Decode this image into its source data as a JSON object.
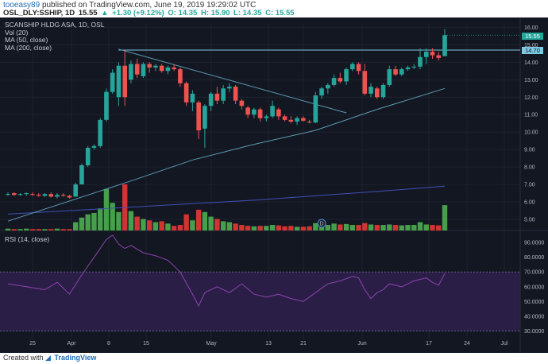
{
  "header": {
    "user": "tooeasy89",
    "published_text": "published on TradingView.com, June 19, 2019 19:29:02 UTC",
    "symbol": "OSL_DLY:SSHIP, 1D",
    "last": "15.55",
    "change": "+1.30 (+9.12%)",
    "ohlc_o": "O: 14.35",
    "ohlc_h": "H: 15.90",
    "ohlc_l": "L: 14.35",
    "ohlc_c": "C: 15.55"
  },
  "legend": {
    "title": "SCANSHIP HLDG ASA, 1D, OSL",
    "vol": "Vol (20)",
    "ma50": "MA (50, close)",
    "ma200": "MA (200, close)"
  },
  "rsi_legend": "RSI (14, close)",
  "price_badges": {
    "last": "15.55",
    "ma_line": "14.70"
  },
  "dividend_marker": "D",
  "footer": {
    "created_with": "Created with",
    "brand": "TradingView"
  },
  "colors": {
    "background": "#131722",
    "up": "#26a69a",
    "down": "#ef5350",
    "vol_up": "#4caf50",
    "vol_down": "#e53935",
    "ma50": "#5b9ab0",
    "ma200": "#3f51b5",
    "rsi_line": "#8e44ad",
    "rsi_band": "#2a1e47",
    "last_badge": "#26a69a",
    "ma_badge": "#7ec8e3"
  },
  "chart_data": {
    "type": "candlestick",
    "x_tick_labels": [
      "25",
      "Apr",
      "8",
      "15",
      "May",
      "13",
      "21",
      "Jun",
      "17",
      "24",
      "Jul"
    ],
    "price_axis_ticks": [
      "16.00",
      "15.00",
      "14.00",
      "13.00",
      "12.00",
      "11.00",
      "10.00",
      "9.00",
      "8.00",
      "7.00",
      "6.00",
      "5.00"
    ],
    "price_ylim": [
      4.5,
      16.2
    ],
    "rsi_axis_ticks": [
      "90.0000",
      "80.0000",
      "70.0000",
      "60.0000",
      "50.0000",
      "40.0000",
      "30.0000"
    ],
    "rsi_ylim": [
      27,
      96
    ],
    "candles": [
      {
        "o": 6.45,
        "h": 6.55,
        "l": 6.35,
        "c": 6.45
      },
      {
        "o": 6.5,
        "h": 6.55,
        "l": 6.35,
        "c": 6.4
      },
      {
        "o": 6.4,
        "h": 6.5,
        "l": 6.35,
        "c": 6.45
      },
      {
        "o": 6.45,
        "h": 6.55,
        "l": 6.35,
        "c": 6.5
      },
      {
        "o": 6.45,
        "h": 6.55,
        "l": 6.35,
        "c": 6.4
      },
      {
        "o": 6.4,
        "h": 6.5,
        "l": 6.3,
        "c": 6.35
      },
      {
        "o": 6.35,
        "h": 6.5,
        "l": 6.3,
        "c": 6.45
      },
      {
        "o": 6.45,
        "h": 6.55,
        "l": 6.25,
        "c": 6.3
      },
      {
        "o": 6.3,
        "h": 6.5,
        "l": 6.2,
        "c": 6.4
      },
      {
        "o": 6.4,
        "h": 6.5,
        "l": 6.3,
        "c": 6.35
      },
      {
        "o": 6.35,
        "h": 6.4,
        "l": 6.2,
        "c": 6.25
      },
      {
        "o": 6.3,
        "h": 7.1,
        "l": 6.3,
        "c": 7.0
      },
      {
        "o": 7.0,
        "h": 8.2,
        "l": 7.0,
        "c": 8.1
      },
      {
        "o": 8.1,
        "h": 9.2,
        "l": 8.0,
        "c": 9.1
      },
      {
        "o": 9.1,
        "h": 9.3,
        "l": 9.0,
        "c": 9.2
      },
      {
        "o": 9.2,
        "h": 10.8,
        "l": 9.1,
        "c": 10.7
      },
      {
        "o": 10.7,
        "h": 12.5,
        "l": 10.6,
        "c": 12.3
      },
      {
        "o": 12.3,
        "h": 13.6,
        "l": 12.2,
        "c": 13.4
      },
      {
        "o": 12.0,
        "h": 14.0,
        "l": 11.5,
        "c": 13.8
      },
      {
        "o": 13.8,
        "h": 14.7,
        "l": 11.5,
        "c": 12.0
      },
      {
        "o": 13.0,
        "h": 14.1,
        "l": 12.8,
        "c": 13.9
      },
      {
        "o": 13.9,
        "h": 14.2,
        "l": 13.1,
        "c": 13.3
      },
      {
        "o": 13.2,
        "h": 14.0,
        "l": 13.1,
        "c": 13.9
      },
      {
        "o": 13.9,
        "h": 14.0,
        "l": 13.4,
        "c": 13.7
      },
      {
        "o": 13.7,
        "h": 13.9,
        "l": 13.5,
        "c": 13.8
      },
      {
        "o": 13.8,
        "h": 13.9,
        "l": 13.4,
        "c": 13.5
      },
      {
        "o": 13.5,
        "h": 13.8,
        "l": 13.3,
        "c": 13.7
      },
      {
        "o": 13.7,
        "h": 13.9,
        "l": 13.5,
        "c": 13.6
      },
      {
        "o": 13.6,
        "h": 13.7,
        "l": 12.6,
        "c": 12.8
      },
      {
        "o": 12.8,
        "h": 12.9,
        "l": 11.5,
        "c": 11.7
      },
      {
        "o": 11.7,
        "h": 12.4,
        "l": 11.2,
        "c": 12.2
      },
      {
        "o": 11.7,
        "h": 11.8,
        "l": 9.6,
        "c": 10.1
      },
      {
        "o": 10.2,
        "h": 11.6,
        "l": 9.1,
        "c": 11.5
      },
      {
        "o": 11.5,
        "h": 12.3,
        "l": 11.2,
        "c": 12.2
      },
      {
        "o": 12.2,
        "h": 12.6,
        "l": 11.6,
        "c": 11.8
      },
      {
        "o": 11.8,
        "h": 12.7,
        "l": 11.6,
        "c": 12.5
      },
      {
        "o": 12.5,
        "h": 12.8,
        "l": 12.3,
        "c": 12.6
      },
      {
        "o": 12.6,
        "h": 12.7,
        "l": 11.6,
        "c": 11.8
      },
      {
        "o": 11.8,
        "h": 11.9,
        "l": 11.3,
        "c": 11.5
      },
      {
        "o": 11.4,
        "h": 11.5,
        "l": 10.8,
        "c": 11.0
      },
      {
        "o": 11.0,
        "h": 11.4,
        "l": 10.8,
        "c": 11.3
      },
      {
        "o": 11.3,
        "h": 11.4,
        "l": 10.6,
        "c": 10.8
      },
      {
        "o": 10.8,
        "h": 11.0,
        "l": 10.6,
        "c": 10.9
      },
      {
        "o": 10.9,
        "h": 11.8,
        "l": 10.8,
        "c": 11.5
      },
      {
        "o": 11.3,
        "h": 11.4,
        "l": 10.7,
        "c": 10.9
      },
      {
        "o": 10.9,
        "h": 11.0,
        "l": 10.6,
        "c": 10.7
      },
      {
        "o": 10.7,
        "h": 10.9,
        "l": 10.5,
        "c": 10.6
      },
      {
        "o": 10.6,
        "h": 10.9,
        "l": 10.4,
        "c": 10.8
      },
      {
        "o": 10.8,
        "h": 10.9,
        "l": 10.6,
        "c": 10.65
      },
      {
        "o": 10.6,
        "h": 10.7,
        "l": 10.5,
        "c": 10.55
      },
      {
        "o": 10.55,
        "h": 12.3,
        "l": 10.5,
        "c": 12.1
      },
      {
        "o": 12.1,
        "h": 12.6,
        "l": 11.9,
        "c": 12.5
      },
      {
        "o": 12.5,
        "h": 12.8,
        "l": 12.2,
        "c": 12.7
      },
      {
        "o": 12.7,
        "h": 13.3,
        "l": 12.6,
        "c": 13.1
      },
      {
        "o": 13.1,
        "h": 13.4,
        "l": 12.8,
        "c": 12.9
      },
      {
        "o": 12.9,
        "h": 13.7,
        "l": 12.7,
        "c": 13.6
      },
      {
        "o": 13.6,
        "h": 14.0,
        "l": 13.5,
        "c": 13.9
      },
      {
        "o": 13.9,
        "h": 14.0,
        "l": 13.3,
        "c": 13.5
      },
      {
        "o": 13.5,
        "h": 13.9,
        "l": 12.1,
        "c": 12.2
      },
      {
        "o": 12.2,
        "h": 12.8,
        "l": 12.0,
        "c": 12.6
      },
      {
        "o": 12.5,
        "h": 12.6,
        "l": 11.9,
        "c": 12.0
      },
      {
        "o": 12.0,
        "h": 12.8,
        "l": 11.9,
        "c": 12.7
      },
      {
        "o": 12.7,
        "h": 13.8,
        "l": 12.6,
        "c": 13.6
      },
      {
        "o": 13.6,
        "h": 13.8,
        "l": 13.2,
        "c": 13.3
      },
      {
        "o": 13.3,
        "h": 13.7,
        "l": 13.2,
        "c": 13.6
      },
      {
        "o": 13.6,
        "h": 13.8,
        "l": 13.5,
        "c": 13.7
      },
      {
        "o": 13.7,
        "h": 13.9,
        "l": 13.6,
        "c": 13.75
      },
      {
        "o": 13.75,
        "h": 14.8,
        "l": 13.6,
        "c": 14.3
      },
      {
        "o": 14.3,
        "h": 14.8,
        "l": 13.9,
        "c": 14.6
      },
      {
        "o": 14.6,
        "h": 14.8,
        "l": 14.2,
        "c": 14.4
      },
      {
        "o": 14.4,
        "h": 14.6,
        "l": 14.1,
        "c": 14.25
      },
      {
        "o": 14.35,
        "h": 15.9,
        "l": 14.35,
        "c": 15.55
      }
    ],
    "volume": [
      0.04,
      0.03,
      0.03,
      0.04,
      0.03,
      0.03,
      0.03,
      0.03,
      0.04,
      0.03,
      0.03,
      0.18,
      0.28,
      0.35,
      0.38,
      0.48,
      0.9,
      0.6,
      0.4,
      1.0,
      0.42,
      0.3,
      0.25,
      0.22,
      0.18,
      0.2,
      0.15,
      0.1,
      0.12,
      0.35,
      0.22,
      0.45,
      0.4,
      0.3,
      0.25,
      0.2,
      0.18,
      0.15,
      0.12,
      0.1,
      0.09,
      0.1,
      0.1,
      0.12,
      0.11,
      0.09,
      0.1,
      0.08,
      0.08,
      0.09,
      0.16,
      0.14,
      0.12,
      0.15,
      0.13,
      0.14,
      0.12,
      0.12,
      0.16,
      0.13,
      0.12,
      0.12,
      0.13,
      0.12,
      0.11,
      0.12,
      0.12,
      0.18,
      0.13,
      0.12,
      0.11,
      0.55
    ],
    "ma50": [
      [
        0,
        4.9
      ],
      [
        20,
        7.2
      ],
      [
        30,
        8.4
      ],
      [
        40,
        9.3
      ],
      [
        50,
        10.1
      ],
      [
        60,
        11.3
      ],
      [
        71,
        12.5
      ]
    ],
    "ma200": [
      [
        0,
        5.3
      ],
      [
        20,
        5.7
      ],
      [
        40,
        6.1
      ],
      [
        60,
        6.6
      ],
      [
        71,
        6.9
      ]
    ],
    "trendline": [
      [
        18,
        14.75
      ],
      [
        55,
        11.1
      ]
    ],
    "resistance": 14.7,
    "rsi": [
      [
        0,
        62
      ],
      [
        3,
        60
      ],
      [
        6,
        58
      ],
      [
        8,
        63
      ],
      [
        10,
        55
      ],
      [
        12,
        68
      ],
      [
        14,
        80
      ],
      [
        16,
        92
      ],
      [
        17,
        95
      ],
      [
        18,
        89
      ],
      [
        19,
        86
      ],
      [
        20,
        88
      ],
      [
        22,
        83
      ],
      [
        24,
        81
      ],
      [
        26,
        78
      ],
      [
        28,
        70
      ],
      [
        30,
        55
      ],
      [
        31,
        47
      ],
      [
        32,
        56
      ],
      [
        34,
        60
      ],
      [
        36,
        56
      ],
      [
        38,
        62
      ],
      [
        40,
        55
      ],
      [
        42,
        53
      ],
      [
        44,
        55
      ],
      [
        46,
        52
      ],
      [
        48,
        50
      ],
      [
        50,
        56
      ],
      [
        52,
        62
      ],
      [
        54,
        64
      ],
      [
        56,
        67
      ],
      [
        57,
        66
      ],
      [
        58,
        58
      ],
      [
        59,
        52
      ],
      [
        60,
        56
      ],
      [
        61,
        58
      ],
      [
        62,
        62
      ],
      [
        64,
        60
      ],
      [
        66,
        64
      ],
      [
        68,
        66
      ],
      [
        69,
        63
      ],
      [
        70,
        61
      ],
      [
        71,
        69
      ]
    ]
  }
}
